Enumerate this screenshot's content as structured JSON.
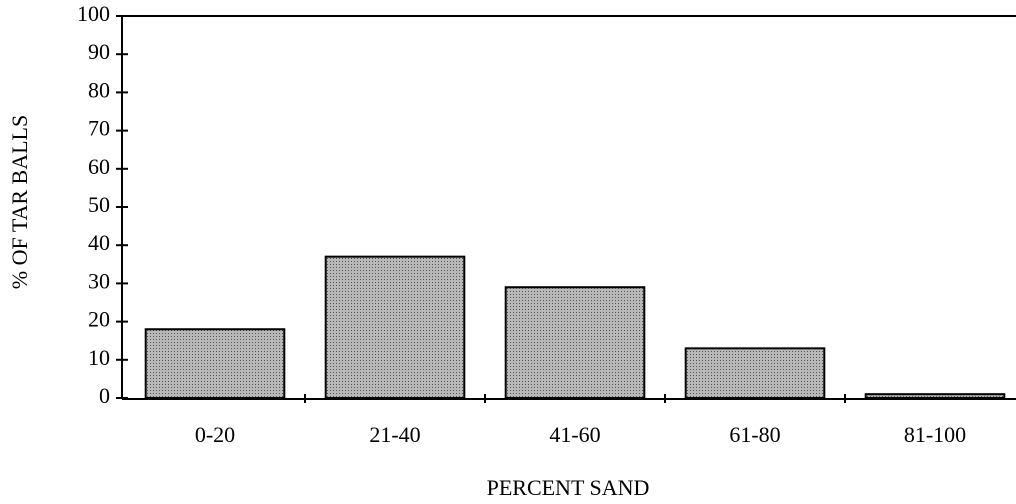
{
  "chart_data": {
    "type": "bar",
    "x_label": "PERCENT SAND",
    "y_label": "% OF TAR BALLS",
    "categories": [
      "0-20",
      "21-40",
      "41-60",
      "61-80",
      "81-100"
    ],
    "values": [
      18,
      37,
      29,
      13,
      1
    ],
    "color": "#9c9c9c",
    "ylim": [
      0,
      100
    ],
    "yticks": [
      0,
      10,
      20,
      30,
      40,
      50,
      60,
      70,
      80,
      90,
      100
    ],
    "grid": false
  }
}
